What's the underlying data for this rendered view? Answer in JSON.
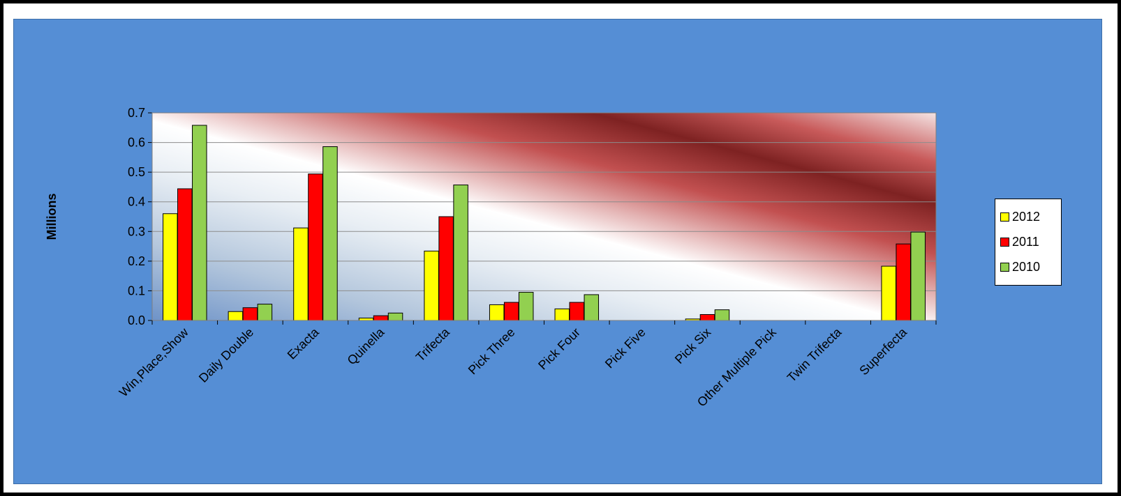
{
  "chart_data": {
    "type": "bar",
    "categories": [
      "Win,Place,Show",
      "Daily Double",
      "Exacta",
      "Quinella",
      "Trifecta",
      "Pick Three",
      "Pick Four",
      "Pick Five",
      "Pick Six",
      "Other Multiple Pick",
      "Twin Trifecta",
      "Superfecta"
    ],
    "series": [
      {
        "name": "2012",
        "color": "#ffff00",
        "values": [
          0.36,
          0.03,
          0.312,
          0.008,
          0.234,
          0.053,
          0.039,
          0.0,
          0.005,
          0.0,
          0.0,
          0.183
        ]
      },
      {
        "name": "2011",
        "color": "#ff0000",
        "values": [
          0.444,
          0.043,
          0.494,
          0.016,
          0.35,
          0.061,
          0.061,
          0.0,
          0.02,
          0.0,
          0.0,
          0.258
        ]
      },
      {
        "name": "2010",
        "color": "#92d050",
        "values": [
          0.658,
          0.055,
          0.586,
          0.025,
          0.457,
          0.095,
          0.087,
          0.0,
          0.036,
          0.0,
          0.0,
          0.298
        ]
      }
    ],
    "yticks": [
      "0.0",
      "0.1",
      "0.2",
      "0.3",
      "0.4",
      "0.5",
      "0.6",
      "0.7"
    ],
    "ylabel": "Millions",
    "xlabel": "",
    "title": "",
    "ylim": [
      0,
      0.7
    ],
    "grid": true,
    "legend_position": "right"
  }
}
